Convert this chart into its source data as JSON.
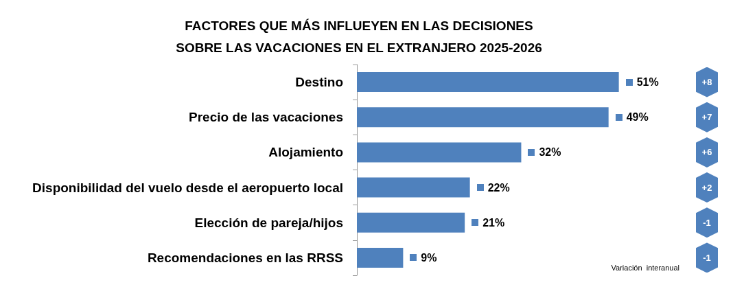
{
  "chart_data": {
    "type": "bar",
    "orientation": "horizontal",
    "title": "FACTORES QUE MÁS INFLUEYEN EN LAS DECISIONES\nSOBRE LAS VACACIONES EN EL EXTRANJERO 2025-2026",
    "categories": [
      "Destino",
      "Precio de las vacaciones",
      "Alojamiento",
      "Disponibilidad del vuelo desde el aeropuerto local",
      "Elección de pareja/hijos",
      "Recomendaciones en las RRSS"
    ],
    "values": [
      51,
      49,
      32,
      22,
      21,
      9
    ],
    "value_labels": [
      "51%",
      "49%",
      "32%",
      "22%",
      "21%",
      "9%"
    ],
    "color": "#4f81bd",
    "annotations": [
      "+8",
      "+7",
      "+6",
      "+2",
      "-1",
      "-1",
      "Variación  interanual"
    ]
  }
}
